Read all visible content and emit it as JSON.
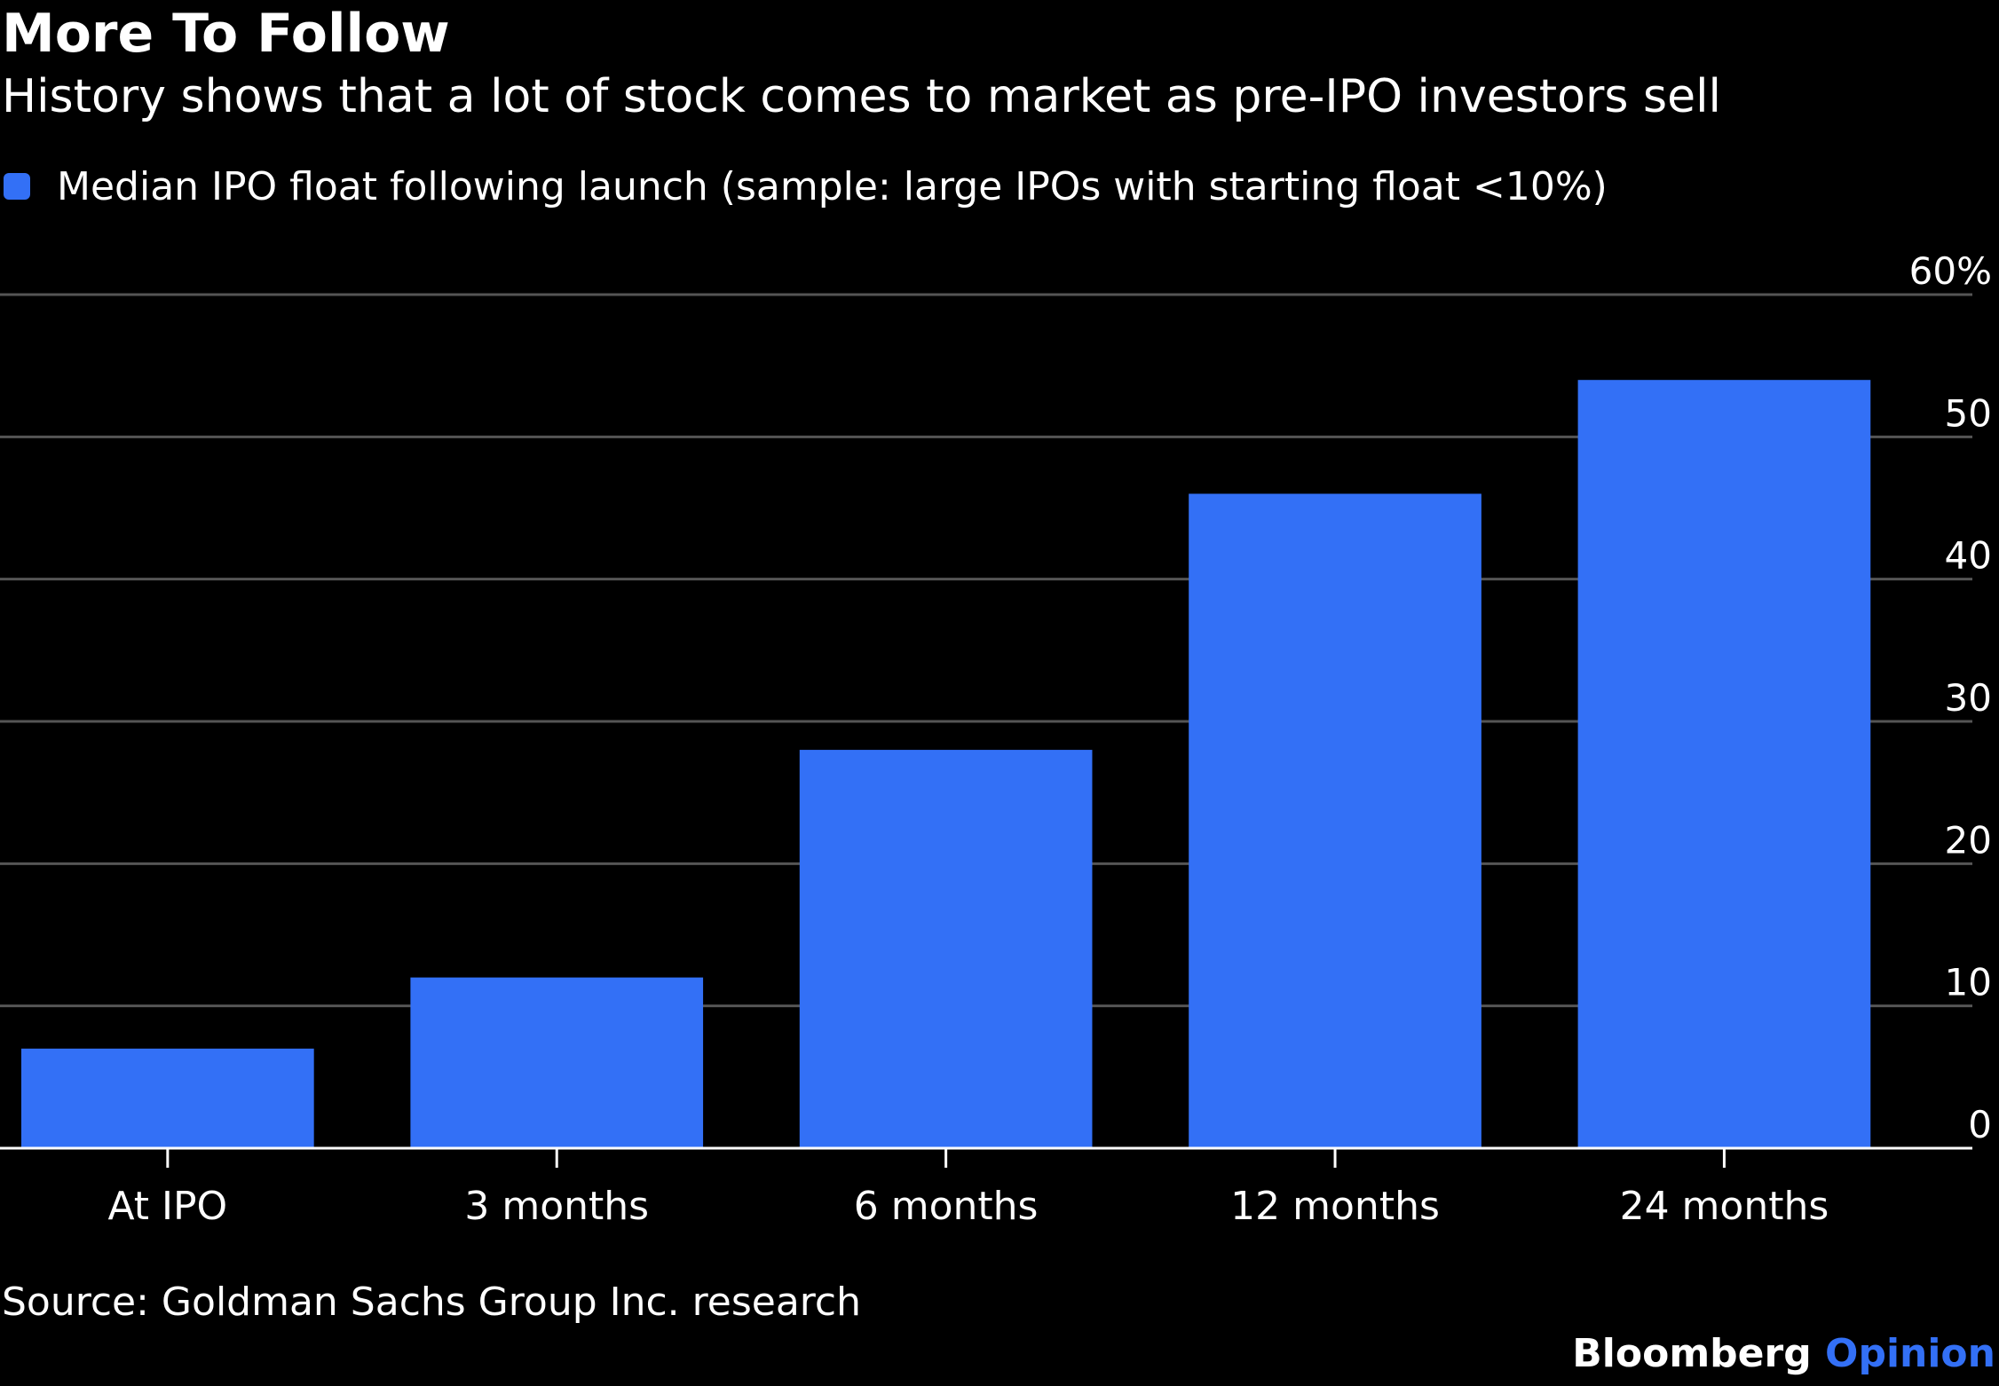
{
  "header": {
    "title": "More To Follow",
    "subtitle": "History shows that a lot of stock comes to market as pre-IPO investors sell"
  },
  "footer": {
    "source": "Source: Goldman Sachs Group Inc. research",
    "brand_name": "Bloomberg",
    "brand_sub": "Opinion"
  },
  "colors": {
    "background": "#000000",
    "bar": "#3370f6",
    "grid": "#555555",
    "axis": "#ffffff",
    "text": "#ffffff"
  },
  "chart_data": {
    "type": "bar",
    "title": "More To Follow",
    "subtitle": "History shows that a lot of stock comes to market as pre-IPO investors sell",
    "categories": [
      "At IPO",
      "3 months",
      "6 months",
      "12 months",
      "24 months"
    ],
    "series": [
      {
        "name": "Median IPO float following launch (sample: large IPOs with starting float <10%)",
        "values": [
          7,
          12,
          28,
          46,
          54
        ]
      }
    ],
    "y_ticks": [
      0,
      10,
      20,
      30,
      40,
      50,
      60
    ],
    "y_tick_labels": [
      "0",
      "10",
      "20",
      "30",
      "40",
      "50",
      "60%"
    ],
    "ylim": [
      0,
      60
    ],
    "y_axis_side": "right",
    "grid": true,
    "legend_position": "top-left",
    "xlabel": "",
    "ylabel": ""
  }
}
